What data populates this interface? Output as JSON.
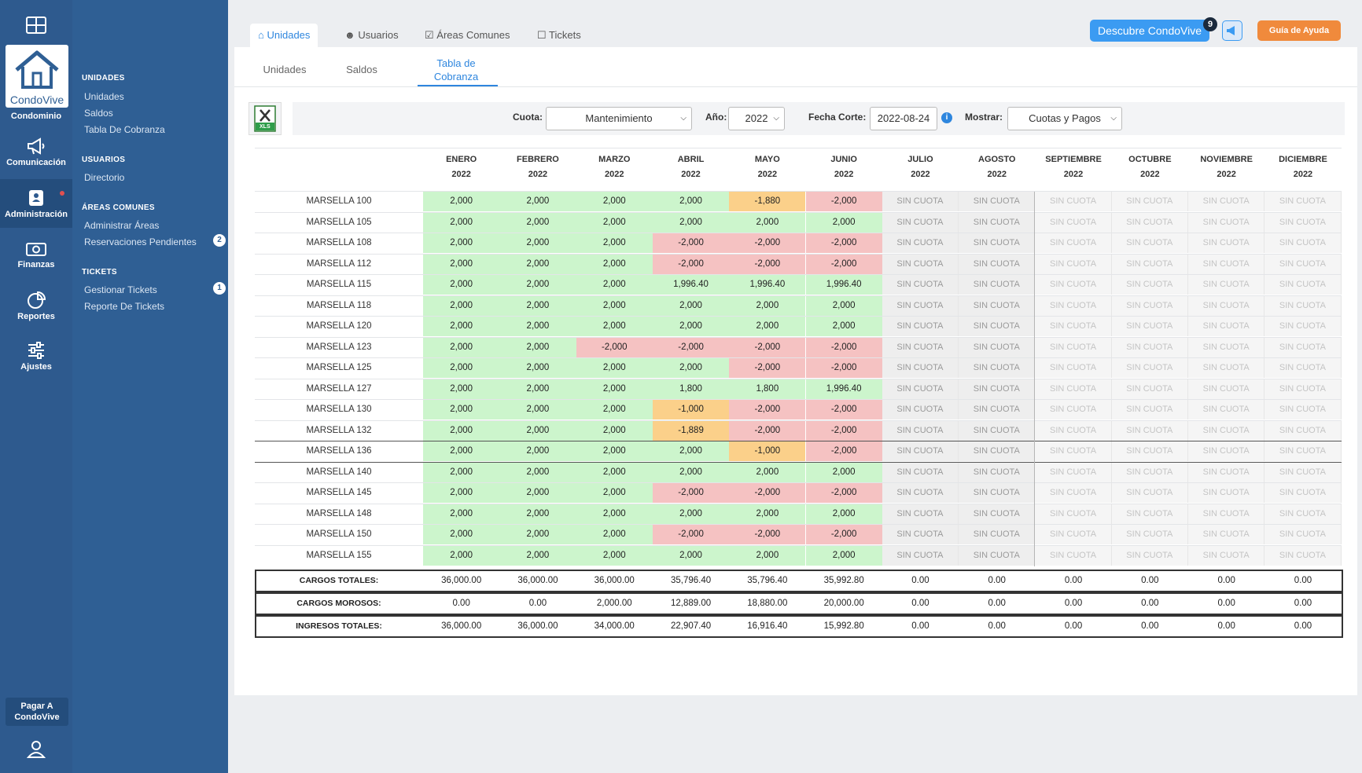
{
  "rail": {
    "brand": "CondoVive",
    "org": "Condominio",
    "items": [
      {
        "label": "Comunicación",
        "icon": "megaphone-icon"
      },
      {
        "label": "Administración",
        "icon": "contact-card-icon"
      },
      {
        "label": "Finanzas",
        "icon": "money-icon"
      },
      {
        "label": "Reportes",
        "icon": "pie-chart-icon"
      },
      {
        "label": "Ajustes",
        "icon": "sliders-icon"
      }
    ],
    "pay": "Pagar A\nCondoVive"
  },
  "sidebar": {
    "sections": [
      {
        "title": "UNIDADES",
        "items": [
          {
            "label": "Unidades"
          },
          {
            "label": "Saldos"
          },
          {
            "label": "Tabla De Cobranza"
          }
        ]
      },
      {
        "title": "USUARIOS",
        "items": [
          {
            "label": "Directorio"
          }
        ]
      },
      {
        "title": "ÁREAS COMUNES",
        "items": [
          {
            "label": "Administrar Áreas"
          },
          {
            "label": "Reservaciones Pendientes",
            "count": "2"
          }
        ]
      },
      {
        "title": "TICKETS",
        "items": [
          {
            "label": "Gestionar Tickets",
            "count": "1"
          },
          {
            "label": "Reporte De Tickets"
          }
        ]
      }
    ]
  },
  "tabs": [
    {
      "label": "Unidades",
      "icon": "home-icon"
    },
    {
      "label": "Usuarios",
      "icon": "user-icon"
    },
    {
      "label": "Áreas Comunes",
      "icon": "calendar-icon"
    },
    {
      "label": "Tickets",
      "icon": "clipboard-icon"
    }
  ],
  "header": {
    "discover": "Descubre CondoVive",
    "discover_badge": "9",
    "help": "Guía de Ayuda"
  },
  "subtabs": [
    "Unidades",
    "Saldos",
    "Tabla de Cobranza"
  ],
  "filters": {
    "cuota_label": "Cuota:",
    "cuota": "Mantenimiento",
    "anio_label": "Año:",
    "anio": "2022",
    "fecha_label": "Fecha Corte:",
    "fecha": "2022-08-24",
    "mostrar_label": "Mostrar:",
    "mostrar": "Cuotas y Pagos",
    "xls": "XLS"
  },
  "colors": {
    "paid": "#ccf5cc",
    "debt": "#f5c2c2",
    "partial": "#fbd08a",
    "none": "#eeeeee"
  },
  "months": [
    "ENERO",
    "FEBRERO",
    "MARZO",
    "ABRIL",
    "MAYO",
    "JUNIO",
    "JULIO",
    "AGOSTO",
    "SEPTIEMBRE",
    "OCTUBRE",
    "NOVIEMBRE",
    "DICIEMBRE"
  ],
  "year": "2022",
  "no_fee": "SIN CUOTA",
  "rows": [
    {
      "unit": "MARSELLA 100",
      "v": [
        "2,000",
        "2,000",
        "2,000",
        "2,000",
        "-1,880",
        "-2,000"
      ],
      "s": [
        "p",
        "p",
        "p",
        "p",
        "o",
        "d"
      ]
    },
    {
      "unit": "MARSELLA 105",
      "v": [
        "2,000",
        "2,000",
        "2,000",
        "2,000",
        "2,000",
        "2,000"
      ],
      "s": [
        "p",
        "p",
        "p",
        "p",
        "p",
        "p"
      ]
    },
    {
      "unit": "MARSELLA 108",
      "v": [
        "2,000",
        "2,000",
        "2,000",
        "-2,000",
        "-2,000",
        "-2,000"
      ],
      "s": [
        "p",
        "p",
        "p",
        "d",
        "d",
        "d"
      ]
    },
    {
      "unit": "MARSELLA 112",
      "v": [
        "2,000",
        "2,000",
        "2,000",
        "-2,000",
        "-2,000",
        "-2,000"
      ],
      "s": [
        "p",
        "p",
        "p",
        "d",
        "d",
        "d"
      ]
    },
    {
      "unit": "MARSELLA 115",
      "v": [
        "2,000",
        "2,000",
        "2,000",
        "1,996.40",
        "1,996.40",
        "1,996.40"
      ],
      "s": [
        "p",
        "p",
        "p",
        "p",
        "p",
        "p"
      ]
    },
    {
      "unit": "MARSELLA 118",
      "v": [
        "2,000",
        "2,000",
        "2,000",
        "2,000",
        "2,000",
        "2,000"
      ],
      "s": [
        "p",
        "p",
        "p",
        "p",
        "p",
        "p"
      ]
    },
    {
      "unit": "MARSELLA 120",
      "v": [
        "2,000",
        "2,000",
        "2,000",
        "2,000",
        "2,000",
        "2,000"
      ],
      "s": [
        "p",
        "p",
        "p",
        "p",
        "p",
        "p"
      ]
    },
    {
      "unit": "MARSELLA 123",
      "v": [
        "2,000",
        "2,000",
        "-2,000",
        "-2,000",
        "-2,000",
        "-2,000"
      ],
      "s": [
        "p",
        "p",
        "d",
        "d",
        "d",
        "d"
      ]
    },
    {
      "unit": "MARSELLA 125",
      "v": [
        "2,000",
        "2,000",
        "2,000",
        "2,000",
        "-2,000",
        "-2,000"
      ],
      "s": [
        "p",
        "p",
        "p",
        "p",
        "d",
        "d"
      ]
    },
    {
      "unit": "MARSELLA 127",
      "v": [
        "2,000",
        "2,000",
        "2,000",
        "1,800",
        "1,800",
        "1,996.40"
      ],
      "s": [
        "p",
        "p",
        "p",
        "p",
        "p",
        "p"
      ]
    },
    {
      "unit": "MARSELLA 130",
      "v": [
        "2,000",
        "2,000",
        "2,000",
        "-1,000",
        "-2,000",
        "-2,000"
      ],
      "s": [
        "p",
        "p",
        "p",
        "o",
        "d",
        "d"
      ]
    },
    {
      "unit": "MARSELLA 132",
      "v": [
        "2,000",
        "2,000",
        "2,000",
        "-1,889",
        "-2,000",
        "-2,000"
      ],
      "s": [
        "p",
        "p",
        "p",
        "o",
        "d",
        "d"
      ]
    },
    {
      "unit": "MARSELLA 136",
      "v": [
        "2,000",
        "2,000",
        "2,000",
        "2,000",
        "-1,000",
        "-2,000"
      ],
      "s": [
        "p",
        "p",
        "p",
        "p",
        "o",
        "d"
      ]
    },
    {
      "unit": "MARSELLA 140",
      "v": [
        "2,000",
        "2,000",
        "2,000",
        "2,000",
        "2,000",
        "2,000"
      ],
      "s": [
        "p",
        "p",
        "p",
        "p",
        "p",
        "p"
      ]
    },
    {
      "unit": "MARSELLA 145",
      "v": [
        "2,000",
        "2,000",
        "2,000",
        "-2,000",
        "-2,000",
        "-2,000"
      ],
      "s": [
        "p",
        "p",
        "p",
        "d",
        "d",
        "d"
      ]
    },
    {
      "unit": "MARSELLA 148",
      "v": [
        "2,000",
        "2,000",
        "2,000",
        "2,000",
        "2,000",
        "2,000"
      ],
      "s": [
        "p",
        "p",
        "p",
        "p",
        "p",
        "p"
      ]
    },
    {
      "unit": "MARSELLA 150",
      "v": [
        "2,000",
        "2,000",
        "2,000",
        "-2,000",
        "-2,000",
        "-2,000"
      ],
      "s": [
        "p",
        "p",
        "p",
        "d",
        "d",
        "d"
      ]
    },
    {
      "unit": "MARSELLA 155",
      "v": [
        "2,000",
        "2,000",
        "2,000",
        "2,000",
        "2,000",
        "2,000"
      ],
      "s": [
        "p",
        "p",
        "p",
        "p",
        "p",
        "p"
      ]
    }
  ],
  "totals": [
    {
      "label": "CARGOS TOTALES:",
      "v": [
        "36,000.00",
        "36,000.00",
        "36,000.00",
        "35,796.40",
        "35,796.40",
        "35,992.80",
        "0.00",
        "0.00",
        "0.00",
        "0.00",
        "0.00",
        "0.00"
      ]
    },
    {
      "label": "CARGOS MOROSOS:",
      "v": [
        "0.00",
        "0.00",
        "2,000.00",
        "12,889.00",
        "18,880.00",
        "20,000.00",
        "0.00",
        "0.00",
        "0.00",
        "0.00",
        "0.00",
        "0.00"
      ]
    },
    {
      "label": "INGRESOS TOTALES:",
      "v": [
        "36,000.00",
        "36,000.00",
        "34,000.00",
        "22,907.40",
        "16,916.40",
        "15,992.80",
        "0.00",
        "0.00",
        "0.00",
        "0.00",
        "0.00",
        "0.00"
      ]
    }
  ]
}
